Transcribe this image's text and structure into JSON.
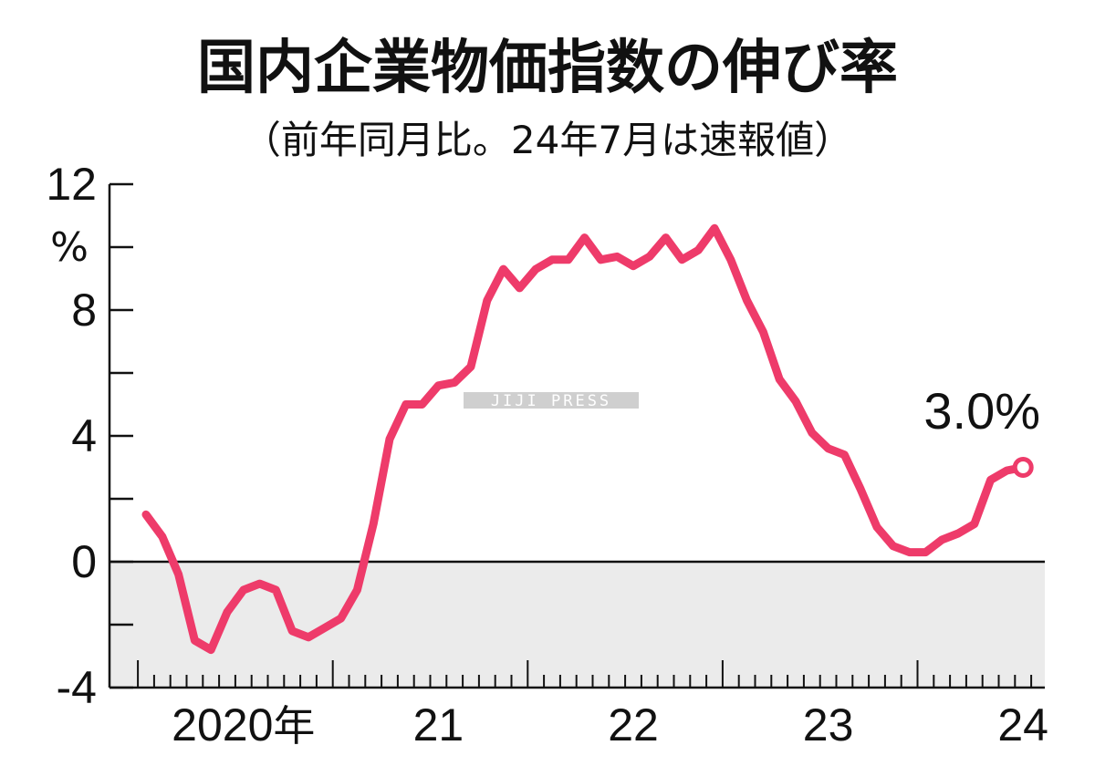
{
  "chart_data": {
    "type": "line",
    "title": "国内企業物価指数の伸び率",
    "subtitle": "（前年同月比。24年7月は速報値）",
    "ylabel": "%",
    "ylim": [
      -4,
      12
    ],
    "yticks": [
      {
        "value": -4,
        "label": "-4"
      },
      {
        "value": 0,
        "label": "0"
      },
      {
        "value": 4,
        "label": "4"
      },
      {
        "value": 8,
        "label": "8"
      },
      {
        "value": 12,
        "label": "12"
      }
    ],
    "x_tick_labels": [
      {
        "text": "2020",
        "suffix": "年",
        "month_index": 6
      },
      {
        "text": "21",
        "month_index": 18
      },
      {
        "text": "22",
        "month_index": 30
      },
      {
        "text": "23",
        "month_index": 42
      },
      {
        "text": "24",
        "month_index": 54
      }
    ],
    "negative_region_color": "#ebebeb",
    "line_color": "#ee3b6a",
    "series": [
      {
        "x": [
          "2020-01",
          "2020-02",
          "2020-03",
          "2020-04",
          "2020-05",
          "2020-06",
          "2020-07",
          "2020-08",
          "2020-09",
          "2020-10",
          "2020-11",
          "2020-12",
          "2021-01",
          "2021-02",
          "2021-03",
          "2021-04",
          "2021-05",
          "2021-06",
          "2021-07",
          "2021-08",
          "2021-09",
          "2021-10",
          "2021-11",
          "2021-12",
          "2022-01",
          "2022-02",
          "2022-03",
          "2022-04",
          "2022-05",
          "2022-06",
          "2022-07",
          "2022-08",
          "2022-09",
          "2022-10",
          "2022-11",
          "2022-12",
          "2023-01",
          "2023-02",
          "2023-03",
          "2023-04",
          "2023-05",
          "2023-06",
          "2023-07",
          "2023-08",
          "2023-09",
          "2023-10",
          "2023-11",
          "2023-12",
          "2024-01",
          "2024-02",
          "2024-03",
          "2024-04",
          "2024-05",
          "2024-06",
          "2024-07"
        ],
        "values": [
          1.5,
          0.8,
          -0.4,
          -2.5,
          -2.8,
          -1.6,
          -0.9,
          -0.7,
          -0.9,
          -2.2,
          -2.4,
          -2.1,
          -1.8,
          -0.9,
          1.2,
          3.9,
          5.0,
          5.0,
          5.6,
          5.7,
          6.2,
          8.3,
          9.3,
          8.7,
          9.3,
          9.6,
          9.6,
          10.3,
          9.6,
          9.7,
          9.4,
          9.7,
          10.3,
          9.6,
          9.9,
          10.6,
          9.6,
          8.3,
          7.3,
          5.8,
          5.1,
          4.1,
          3.6,
          3.4,
          2.3,
          1.1,
          0.5,
          0.3,
          0.3,
          0.7,
          0.9,
          1.2,
          2.6,
          2.9,
          3.0
        ]
      }
    ],
    "annotation": {
      "text": "3.0%",
      "month_index": 54,
      "value": 3.0
    }
  },
  "watermark": "JIJI PRESS"
}
